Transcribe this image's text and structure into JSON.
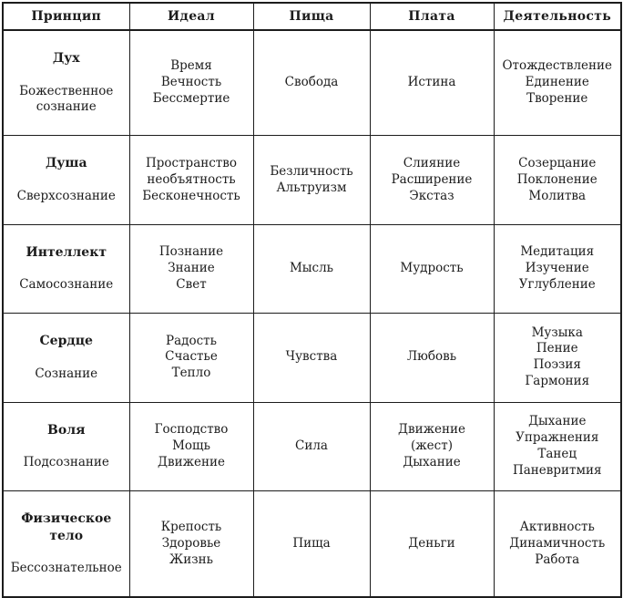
{
  "page": {
    "background_color": "#ffffff",
    "text_color": "#1c1c1c",
    "border_color": "#1c1c1c"
  },
  "table": {
    "headers": [
      "Принцип",
      "Идеал",
      "Пища",
      "Плата",
      "Деятельность"
    ],
    "rows": [
      {
        "principle": "Дух",
        "consciousness": "Божественное\nсознание",
        "ideal": "Время\nВечность\nБессмертие",
        "food": "Свобода",
        "payment": "Истина",
        "activity": "Отождествление\nЕдинение\nТворение"
      },
      {
        "principle": "Душа",
        "consciousness": "Сверхсознание",
        "ideal": "Пространство\nнеобъятность\nБесконечность",
        "food": "Безличность\nАльтруизм",
        "payment": "Слияние\nРасширение\nЭкстаз",
        "activity": "Созерцание\nПоклонение\nМолитва"
      },
      {
        "principle": "Интеллект",
        "consciousness": "Самосознание",
        "ideal": "Познание\nЗнание\nСвет",
        "food": "Мысль",
        "payment": "Мудрость",
        "activity": "Медитация\nИзучение\nУглубление"
      },
      {
        "principle": "Сердце",
        "consciousness": "Сознание",
        "ideal": "Радость\nСчастье\nТепло",
        "food": "Чувства",
        "payment": "Любовь",
        "activity": "Музыка\nПение\nПоэзия\nГармония"
      },
      {
        "principle": "Воля",
        "consciousness": "Подсознание",
        "ideal": "Господство\nМощь\nДвижение",
        "food": "Сила",
        "payment": "Движение\n(жест)\nДыхание",
        "activity": "Дыхание\nУпражнения\nТанец\nПаневритмия"
      },
      {
        "principle": "Физическое\nтело",
        "consciousness": "Бессознательное",
        "ideal": "Крепость\nЗдоровье\nЖизнь",
        "food": "Пища",
        "payment": "Деньги",
        "activity": "Активность\nДинамичность\nРабота"
      }
    ]
  }
}
